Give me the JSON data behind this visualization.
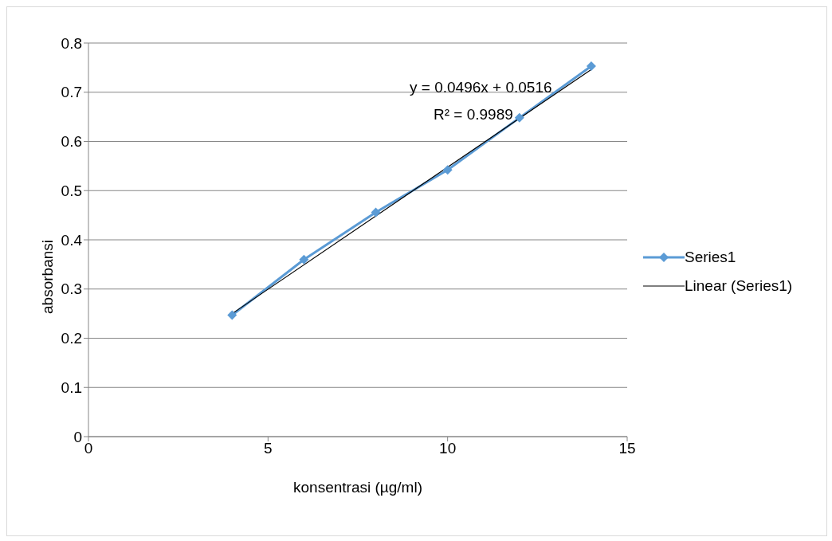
{
  "chart_data": {
    "type": "line",
    "xlabel": "konsentrasi (µg/ml)",
    "ylabel": "absorbansi",
    "xlim": [
      0,
      15
    ],
    "xticks": [
      0,
      5,
      10,
      15
    ],
    "ylim": [
      0,
      0.8
    ],
    "yticks": [
      0,
      0.1,
      0.2,
      0.3,
      0.4,
      0.5,
      0.6,
      0.7,
      0.8
    ],
    "grid": "y",
    "legend": "right",
    "marker": "diamond",
    "line_style": "solid",
    "annotations": [
      "y = 0.0496x + 0.0516",
      "R² = 0.9989"
    ],
    "series": [
      {
        "name": "Series1",
        "color": "#5b9bd5",
        "x": [
          4,
          6,
          8,
          10,
          12,
          14
        ],
        "values": [
          0.247,
          0.36,
          0.456,
          0.542,
          0.648,
          0.753
        ]
      },
      {
        "name": "Linear (Series1)",
        "color": "#000000",
        "marker": "none",
        "x": [
          4,
          14
        ],
        "values": [
          0.25,
          0.746
        ]
      }
    ]
  }
}
